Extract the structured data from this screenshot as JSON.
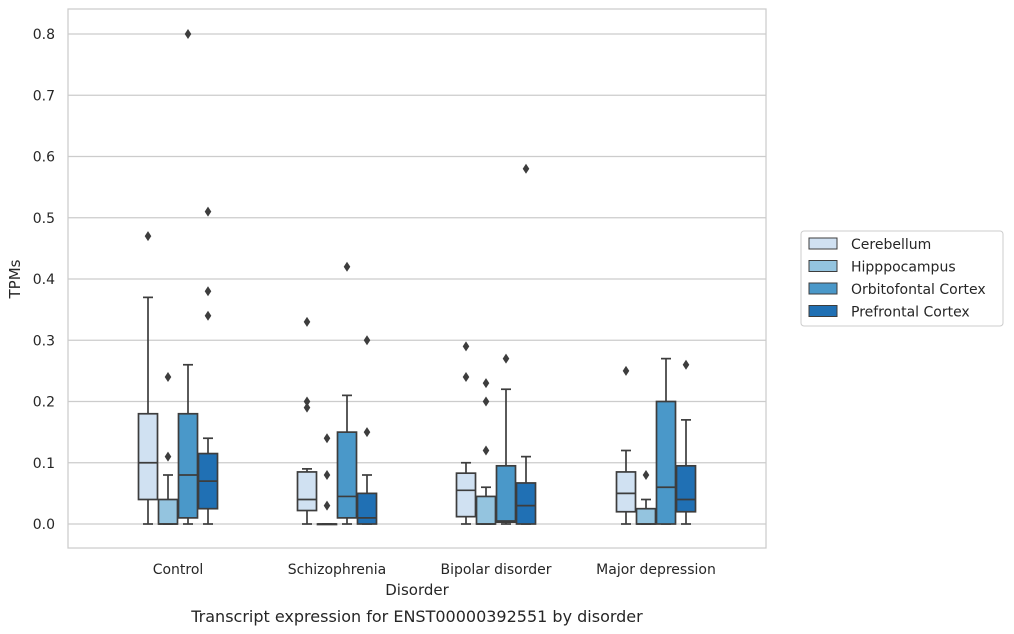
{
  "chart_data": {
    "type": "box",
    "caption": "Transcript expression for ENST00000392551 by disorder",
    "xlabel": "Disorder",
    "ylabel": "TPMs",
    "ylim": [
      -0.04,
      0.84
    ],
    "yticks": [
      "0.0",
      "0.1",
      "0.2",
      "0.3",
      "0.4",
      "0.5",
      "0.6",
      "0.7",
      "0.8"
    ],
    "grid": "horizontal",
    "legend_position": "right",
    "categories": [
      "Control",
      "Schizophrenia",
      "Bipolar disorder",
      "Major depression"
    ],
    "series": [
      {
        "name": "Cerebellum",
        "color": "#d0e1f2",
        "boxes": [
          {
            "low": 0.0,
            "q1": 0.04,
            "median": 0.1,
            "q3": 0.18,
            "high": 0.37,
            "outliers": [
              0.47
            ]
          },
          {
            "low": 0.0,
            "q1": 0.022,
            "median": 0.04,
            "q3": 0.085,
            "high": 0.09,
            "outliers": [
              0.33,
              0.2,
              0.19
            ]
          },
          {
            "low": 0.0,
            "q1": 0.012,
            "median": 0.055,
            "q3": 0.083,
            "high": 0.1,
            "outliers": [
              0.29,
              0.24
            ]
          },
          {
            "low": 0.0,
            "q1": 0.02,
            "median": 0.05,
            "q3": 0.085,
            "high": 0.12,
            "outliers": [
              0.25
            ]
          }
        ]
      },
      {
        "name": "Hipppocampus",
        "color": "#94c4df",
        "boxes": [
          {
            "low": 0.0,
            "q1": 0.0,
            "median": 0.0,
            "q3": 0.04,
            "high": 0.08,
            "outliers": [
              0.24,
              0.11
            ]
          },
          {
            "low": 0.0,
            "q1": 0.0,
            "median": 0.0,
            "q3": 0.0,
            "high": 0.0,
            "outliers": [
              0.14,
              0.08,
              0.03
            ]
          },
          {
            "low": 0.0,
            "q1": 0.0,
            "median": 0.0,
            "q3": 0.045,
            "high": 0.06,
            "outliers": [
              0.23,
              0.2,
              0.12
            ]
          },
          {
            "low": 0.0,
            "q1": 0.0,
            "median": 0.0,
            "q3": 0.025,
            "high": 0.04,
            "outliers": [
              0.08
            ]
          }
        ]
      },
      {
        "name": "Orbitofontal Cortex",
        "color": "#4a98c9",
        "boxes": [
          {
            "low": 0.0,
            "q1": 0.01,
            "median": 0.08,
            "q3": 0.18,
            "high": 0.26,
            "outliers": [
              0.8
            ]
          },
          {
            "low": 0.0,
            "q1": 0.01,
            "median": 0.045,
            "q3": 0.15,
            "high": 0.21,
            "outliers": [
              0.42
            ]
          },
          {
            "low": 0.0,
            "q1": 0.003,
            "median": 0.005,
            "q3": 0.095,
            "high": 0.22,
            "outliers": [
              0.27
            ]
          },
          {
            "low": 0.0,
            "q1": 0.0,
            "median": 0.06,
            "q3": 0.2,
            "high": 0.27,
            "outliers": []
          }
        ]
      },
      {
        "name": "Prefrontal Cortex",
        "color": "#2070b4",
        "boxes": [
          {
            "low": 0.0,
            "q1": 0.025,
            "median": 0.07,
            "q3": 0.115,
            "high": 0.14,
            "outliers": [
              0.51,
              0.38,
              0.34
            ]
          },
          {
            "low": 0.0,
            "q1": 0.0,
            "median": 0.01,
            "q3": 0.05,
            "high": 0.08,
            "outliers": [
              0.3,
              0.15
            ]
          },
          {
            "low": 0.0,
            "q1": 0.0,
            "median": 0.03,
            "q3": 0.067,
            "high": 0.11,
            "outliers": [
              0.58
            ]
          },
          {
            "low": 0.0,
            "q1": 0.02,
            "median": 0.04,
            "q3": 0.095,
            "high": 0.17,
            "outliers": [
              0.26
            ]
          }
        ]
      }
    ]
  }
}
